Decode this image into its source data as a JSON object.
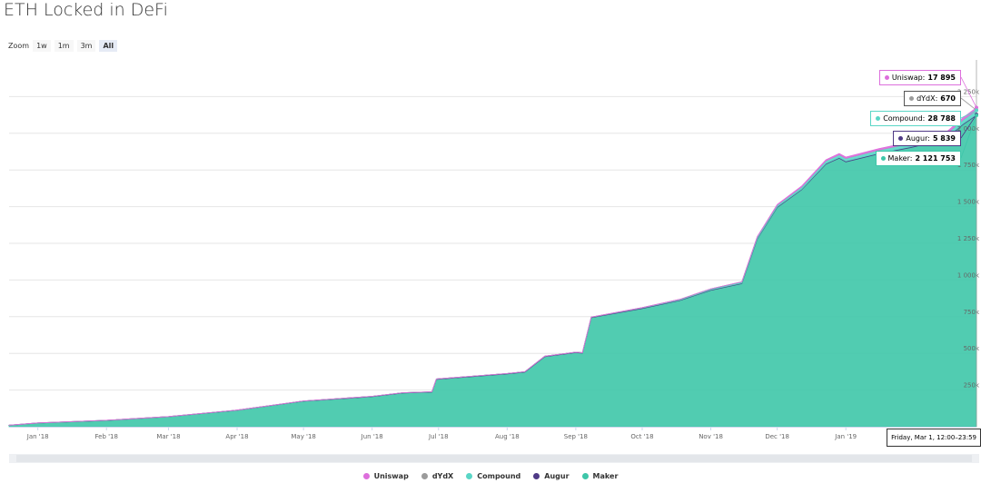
{
  "chart_data": {
    "type": "stacked_area",
    "title": "ETH Locked in DeFi",
    "zoom": {
      "label": "Zoom",
      "buttons": [
        "1w",
        "1m",
        "3m",
        "All"
      ],
      "active": 3
    },
    "x": [
      -13,
      0,
      31,
      59,
      90,
      120,
      151,
      165,
      178,
      180,
      212,
      220,
      229,
      243,
      246,
      250,
      273,
      290,
      304,
      318,
      325,
      334,
      345,
      356,
      362,
      365,
      380,
      395,
      410,
      418,
      424
    ],
    "xlim": [
      -13,
      424
    ],
    "xticks": [
      {
        "value": 0,
        "label": "Jan '18"
      },
      {
        "value": 31,
        "label": "Feb '18"
      },
      {
        "value": 59,
        "label": "Mar '18"
      },
      {
        "value": 90,
        "label": "Apr '18"
      },
      {
        "value": 120,
        "label": "May '18"
      },
      {
        "value": 151,
        "label": "Jun '18"
      },
      {
        "value": 181,
        "label": "Jul '18"
      },
      {
        "value": 212,
        "label": "Aug '18"
      },
      {
        "value": 243,
        "label": "Sep '18"
      },
      {
        "value": 273,
        "label": "Oct '18"
      },
      {
        "value": 304,
        "label": "Nov '18"
      },
      {
        "value": 334,
        "label": "Dec '18"
      },
      {
        "value": 365,
        "label": "Jan '19"
      }
    ],
    "ylim": [
      0,
      2500000
    ],
    "yticks": [
      {
        "value": 250000,
        "label": "250k"
      },
      {
        "value": 500000,
        "label": "500k"
      },
      {
        "value": 750000,
        "label": "750k"
      },
      {
        "value": 1000000,
        "label": "1 000k"
      },
      {
        "value": 1250000,
        "label": "1 250k"
      },
      {
        "value": 1500000,
        "label": "1 500k"
      },
      {
        "value": 1750000,
        "label": "1 750k"
      },
      {
        "value": 2000000,
        "label": "2 000k"
      },
      {
        "value": 2250000,
        "label": "2 250k"
      }
    ],
    "grid": true,
    "tooltip_date": "Friday, Mar 1, 12:00–23:59",
    "series": [
      {
        "name": "Uniswap",
        "color": "#dd6fdc",
        "values": [
          0,
          0,
          0,
          0,
          0,
          0,
          0,
          0,
          0,
          0,
          0,
          0,
          0,
          0,
          0,
          0,
          0,
          0,
          0,
          500,
          1500,
          3000,
          5000,
          6500,
          7500,
          8000,
          9000,
          10000,
          12000,
          14000,
          17895
        ],
        "value_labels": [
          null,
          null,
          null,
          null,
          null,
          null,
          null,
          null,
          null,
          null,
          null,
          null,
          null,
          null,
          null,
          null,
          null,
          null,
          null,
          null,
          null,
          null,
          null,
          null,
          null,
          null,
          null,
          null,
          null,
          null,
          "17 895"
        ]
      },
      {
        "name": "dYdX",
        "color": "#9b9b9b",
        "values": [
          0,
          0,
          0,
          0,
          0,
          0,
          0,
          0,
          0,
          0,
          100,
          150,
          200,
          250,
          250,
          300,
          350,
          400,
          420,
          450,
          480,
          500,
          520,
          540,
          560,
          580,
          600,
          620,
          640,
          650,
          670
        ],
        "value_labels": [
          null,
          null,
          null,
          null,
          null,
          null,
          null,
          null,
          null,
          null,
          null,
          null,
          null,
          null,
          null,
          null,
          null,
          null,
          null,
          null,
          null,
          null,
          null,
          null,
          null,
          null,
          null,
          null,
          null,
          null,
          "670"
        ]
      },
      {
        "name": "Compound",
        "color": "#5ad6c6",
        "values": [
          0,
          0,
          0,
          0,
          0,
          0,
          0,
          0,
          0,
          0,
          0,
          0,
          0,
          0,
          0,
          0,
          2000,
          4000,
          6000,
          8000,
          10000,
          12000,
          15000,
          18000,
          19000,
          19500,
          21000,
          23000,
          25000,
          27000,
          28788
        ],
        "value_labels": [
          null,
          null,
          null,
          null,
          null,
          null,
          null,
          null,
          null,
          null,
          null,
          null,
          null,
          null,
          null,
          null,
          null,
          null,
          null,
          null,
          null,
          null,
          null,
          null,
          null,
          null,
          null,
          null,
          null,
          null,
          "28 788"
        ]
      },
      {
        "name": "Augur",
        "color": "#4f3a86",
        "values": [
          500,
          800,
          1000,
          1200,
          1500,
          1800,
          2000,
          2200,
          2300,
          2400,
          2600,
          2700,
          2900,
          3000,
          3000,
          3100,
          3300,
          3500,
          3700,
          3900,
          4000,
          4200,
          4400,
          4600,
          4700,
          4800,
          5000,
          5200,
          5500,
          5700,
          5839
        ],
        "value_labels": [
          null,
          null,
          null,
          null,
          null,
          null,
          null,
          null,
          null,
          null,
          null,
          null,
          null,
          null,
          null,
          null,
          null,
          null,
          null,
          null,
          null,
          null,
          null,
          null,
          null,
          null,
          null,
          null,
          null,
          null,
          "5 839"
        ]
      },
      {
        "name": "Maker",
        "color": "#3ec6a9",
        "values": [
          10000,
          25000,
          43000,
          68000,
          112000,
          174000,
          205000,
          230000,
          236000,
          323000,
          360000,
          372000,
          478000,
          505000,
          502000,
          744000,
          806000,
          860000,
          930000,
          975000,
          1280000,
          1495000,
          1615000,
          1790000,
          1830000,
          1805000,
          1860000,
          1905000,
          1960000,
          2060000,
          2121753
        ],
        "value_labels": [
          null,
          null,
          null,
          null,
          null,
          null,
          null,
          null,
          null,
          null,
          null,
          null,
          null,
          null,
          null,
          null,
          null,
          null,
          null,
          null,
          null,
          null,
          null,
          null,
          null,
          null,
          null,
          null,
          null,
          null,
          "2 121 753"
        ]
      }
    ]
  }
}
